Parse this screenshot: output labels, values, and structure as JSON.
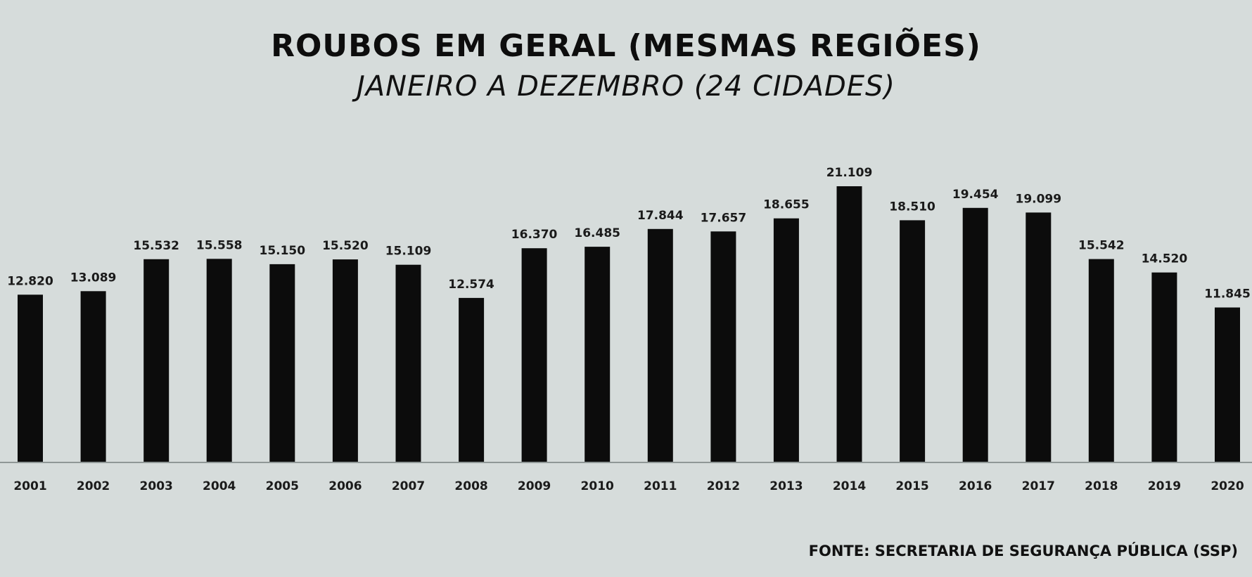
{
  "chart_data": {
    "type": "bar",
    "title": "ROUBOS EM GERAL (MESMAS REGIÕES)",
    "subtitle": "JANEIRO A DEZEMBRO (24 CIDADES)",
    "xlabel": "",
    "ylabel": "",
    "categories": [
      "2001",
      "2002",
      "2003",
      "2004",
      "2005",
      "2006",
      "2007",
      "2008",
      "2009",
      "2010",
      "2011",
      "2012",
      "2013",
      "2014",
      "2015",
      "2016",
      "2017",
      "2018",
      "2019",
      "2020"
    ],
    "values": [
      12820,
      13089,
      15532,
      15558,
      15150,
      15520,
      15109,
      12574,
      16370,
      16485,
      17844,
      17657,
      18655,
      21109,
      18510,
      19454,
      19099,
      15542,
      14520,
      11845
    ],
    "labels": [
      "12.820",
      "13.089",
      "15.532",
      "15.558",
      "15.150",
      "15.520",
      "15.109",
      "12.574",
      "16.370",
      "16.485",
      "17.844",
      "17.657",
      "18.655",
      "21.109",
      "18.510",
      "19.454",
      "19.099",
      "15.542",
      "14.520",
      "11.845"
    ],
    "ylim": [
      0,
      22000
    ],
    "grid": false,
    "legend": "none",
    "bar_color": "#0c0c0c",
    "background_color": "#d6dcdb"
  },
  "source": "FONTE: SECRETARIA DE SEGURANÇA PÚBLICA (SSP)"
}
